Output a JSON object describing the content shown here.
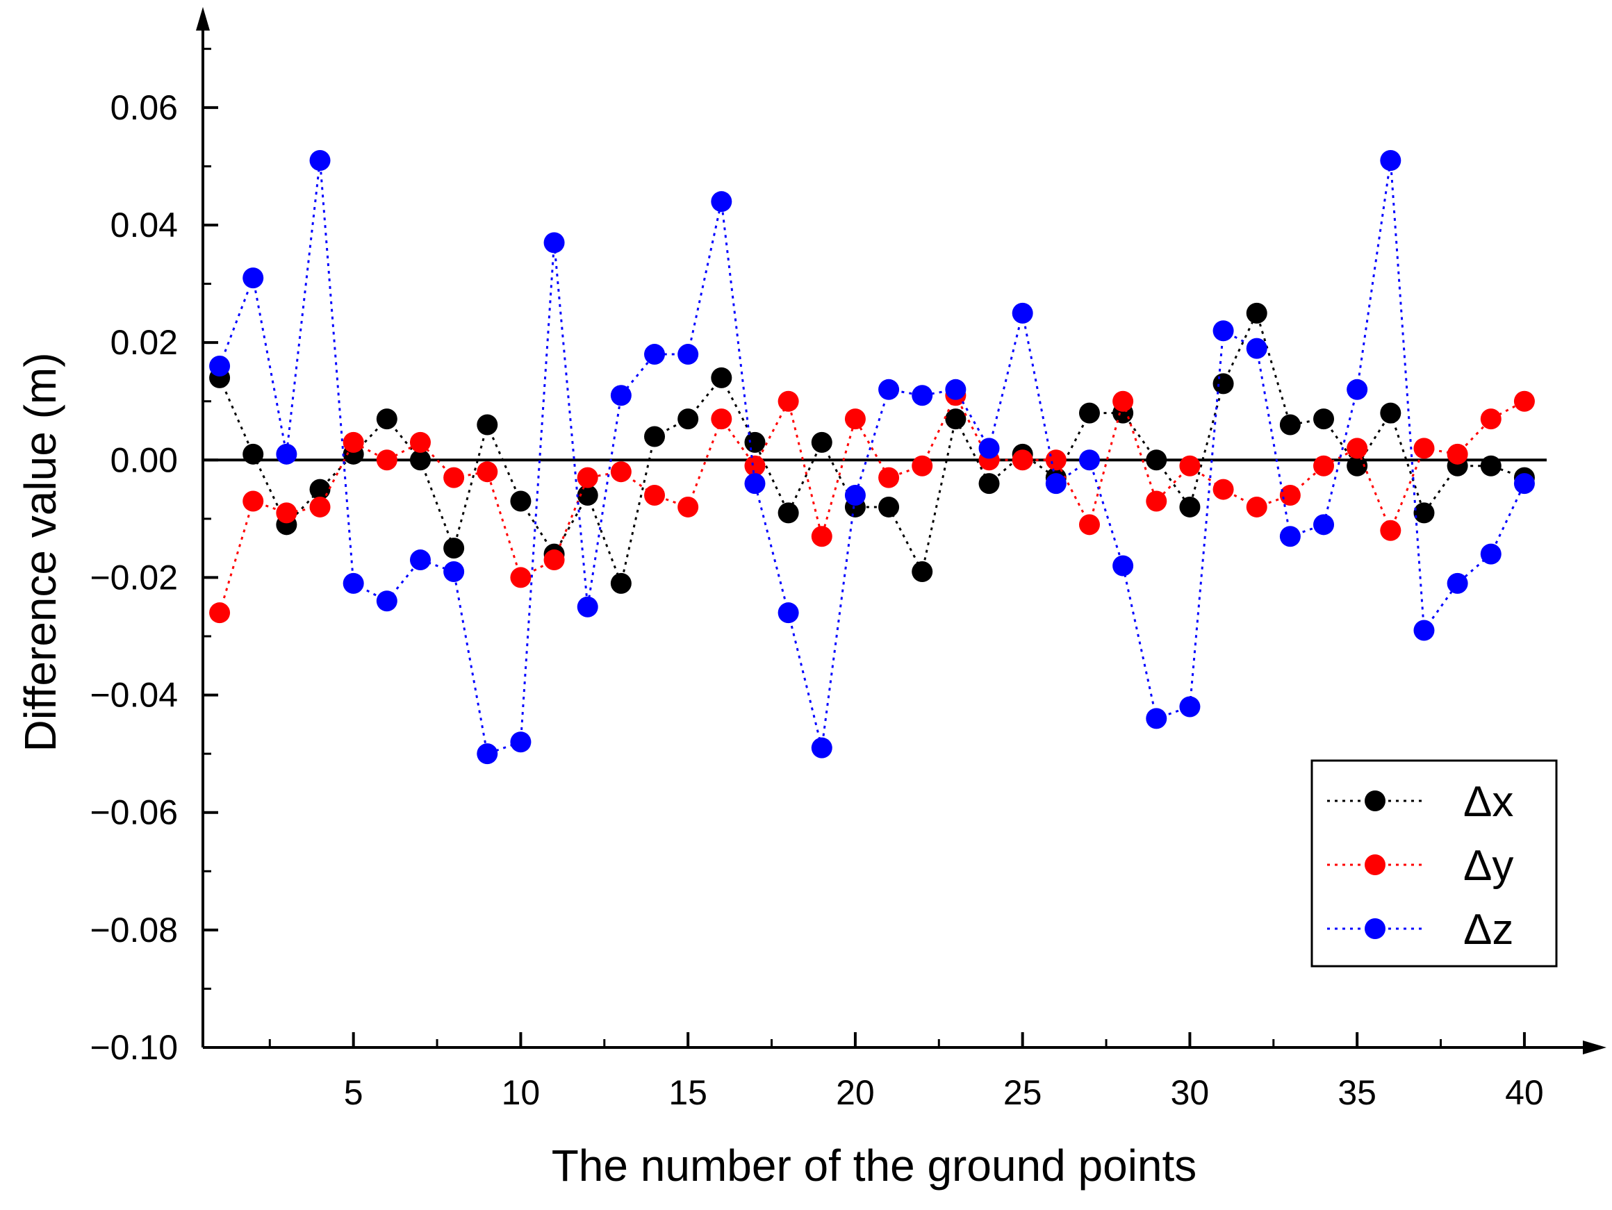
{
  "chart_data": {
    "type": "line",
    "title": "",
    "xlabel": "The number of the ground points",
    "ylabel": "Difference value (m)",
    "xlim": [
      0.5,
      40.5
    ],
    "ylim": [
      -0.1,
      0.075
    ],
    "x_ticks": [
      5,
      10,
      15,
      20,
      25,
      30,
      35,
      40
    ],
    "x_tick_labels": [
      "5",
      "10",
      "15",
      "20",
      "25",
      "30",
      "35",
      "40"
    ],
    "y_ticks": [
      0.06,
      0.04,
      0.02,
      0.0,
      -0.02,
      -0.04,
      -0.06,
      -0.08,
      -0.1
    ],
    "y_tick_labels": [
      "0.06",
      "0.04",
      "0.02",
      "0.00",
      "−0.02",
      "−0.04",
      "−0.06",
      "−0.08",
      "−0.10"
    ],
    "zero_line": true,
    "grid": false,
    "legend_position": "bottom-right",
    "x": [
      1,
      2,
      3,
      4,
      5,
      6,
      7,
      8,
      9,
      10,
      11,
      12,
      13,
      14,
      15,
      16,
      17,
      18,
      19,
      20,
      21,
      22,
      23,
      24,
      25,
      26,
      27,
      28,
      29,
      30,
      31,
      32,
      33,
      34,
      35,
      36,
      37,
      38,
      39,
      40
    ],
    "series": [
      {
        "name": "Δx",
        "color": "#000000",
        "values": [
          0.014,
          0.001,
          -0.011,
          -0.005,
          0.001,
          0.007,
          0.0,
          -0.015,
          0.006,
          -0.007,
          -0.016,
          -0.006,
          -0.021,
          0.004,
          0.007,
          0.014,
          0.003,
          -0.009,
          0.003,
          -0.008,
          -0.008,
          -0.019,
          0.007,
          -0.004,
          0.001,
          -0.003,
          0.008,
          0.008,
          0.0,
          -0.008,
          0.013,
          0.025,
          0.006,
          0.007,
          -0.001,
          0.008,
          -0.009,
          -0.001,
          -0.001,
          -0.003
        ]
      },
      {
        "name": "Δy",
        "color": "#ff0000",
        "values": [
          -0.026,
          -0.007,
          -0.009,
          -0.008,
          0.003,
          0.0,
          0.003,
          -0.003,
          -0.002,
          -0.02,
          -0.017,
          -0.003,
          -0.002,
          -0.006,
          -0.008,
          0.007,
          -0.001,
          0.01,
          -0.013,
          0.007,
          -0.003,
          -0.001,
          0.011,
          0.0,
          0.0,
          0.0,
          -0.011,
          0.01,
          -0.007,
          -0.001,
          -0.005,
          -0.008,
          -0.006,
          -0.001,
          0.002,
          -0.012,
          0.002,
          0.001,
          0.007,
          0.01
        ]
      },
      {
        "name": "Δz",
        "color": "#0000ff",
        "values": [
          0.016,
          0.031,
          0.001,
          0.051,
          -0.021,
          -0.024,
          -0.017,
          -0.019,
          -0.05,
          -0.048,
          0.037,
          -0.025,
          0.011,
          0.018,
          0.018,
          0.044,
          -0.004,
          -0.026,
          -0.049,
          -0.006,
          0.012,
          0.011,
          0.012,
          0.002,
          0.025,
          -0.004,
          0.0,
          -0.018,
          -0.044,
          -0.042,
          0.022,
          0.019,
          -0.013,
          -0.011,
          0.012,
          0.051,
          -0.029,
          -0.021,
          -0.016,
          -0.004
        ]
      }
    ]
  }
}
